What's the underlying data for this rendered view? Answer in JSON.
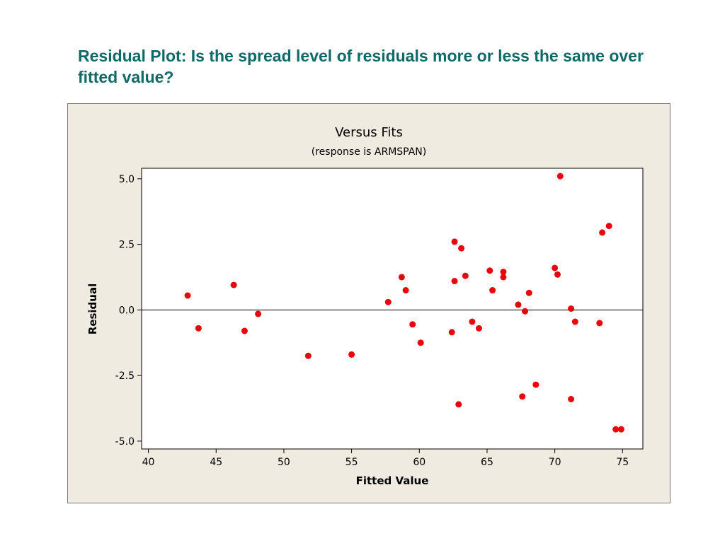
{
  "slide": {
    "title": "Residual Plot: Is the spread level of residuals more or less the same over fitted value?"
  },
  "chart_data": {
    "type": "scatter",
    "title": "Versus Fits",
    "subtitle": "(response is ARMSPAN)",
    "xlabel": "Fitted Value",
    "ylabel": "Residual",
    "xlim": [
      39.5,
      76.5
    ],
    "ylim": [
      -5.3,
      5.4
    ],
    "xticks": [
      40,
      45,
      50,
      55,
      60,
      65,
      70,
      75
    ],
    "yticks": [
      -5.0,
      -2.5,
      0.0,
      2.5,
      5.0
    ],
    "xtick_labels": [
      "40",
      "45",
      "50",
      "55",
      "60",
      "65",
      "70",
      "75"
    ],
    "ytick_labels": [
      "-5.0",
      "-2.5",
      "0.0",
      "2.5",
      "5.0"
    ],
    "reference_line_y": 0,
    "grid": false,
    "point_color": "#e8050b",
    "x": [
      42.9,
      43.7,
      46.3,
      47.1,
      48.1,
      51.8,
      55.0,
      57.7,
      58.7,
      59.0,
      59.5,
      60.1,
      62.4,
      62.6,
      62.6,
      62.9,
      63.1,
      63.4,
      63.9,
      64.4,
      65.2,
      65.4,
      66.2,
      66.2,
      67.3,
      67.6,
      67.8,
      68.1,
      68.6,
      70.0,
      70.2,
      70.4,
      71.2,
      71.2,
      71.5,
      73.3,
      73.5,
      74.0,
      74.5,
      74.9
    ],
    "y": [
      0.55,
      -0.7,
      0.95,
      -0.8,
      -0.15,
      -1.75,
      -1.7,
      0.3,
      1.25,
      0.75,
      -0.55,
      -1.25,
      -0.85,
      2.6,
      1.1,
      -3.6,
      2.35,
      1.3,
      -0.45,
      -0.7,
      1.5,
      0.75,
      1.45,
      1.25,
      0.2,
      -3.3,
      -0.05,
      0.65,
      -2.85,
      1.6,
      1.35,
      5.1,
      0.05,
      -3.4,
      -0.45,
      -0.5,
      2.95,
      3.2,
      -4.55,
      -4.55
    ]
  }
}
